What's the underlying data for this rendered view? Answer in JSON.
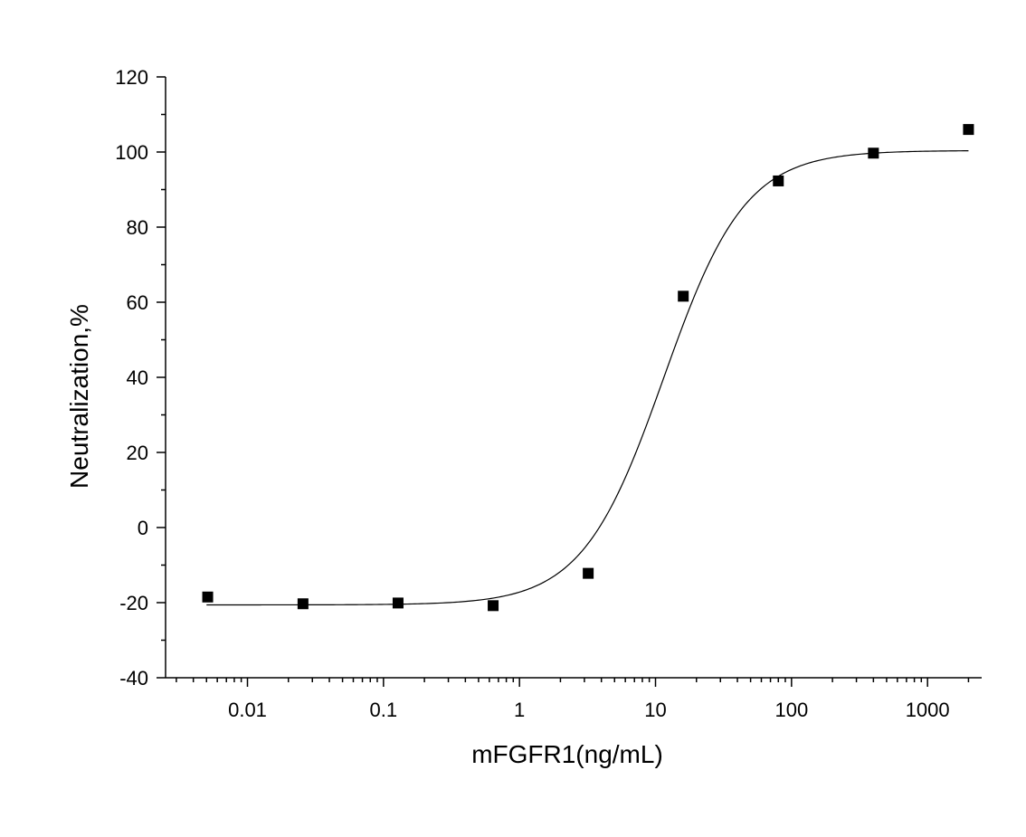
{
  "chart_data": {
    "type": "scatter",
    "title": "",
    "xlabel": "mFGFR1(ng/mL)",
    "ylabel": "Neutralization,%",
    "xscale": "log",
    "xlim": [
      0.0025,
      2500
    ],
    "ylim": [
      -40,
      120
    ],
    "x_ticks": [
      0.01,
      0.1,
      1,
      10,
      100,
      1000
    ],
    "x_tick_labels": [
      "0.01",
      "0.1",
      "1",
      "10",
      "100",
      "1000"
    ],
    "y_ticks": [
      -40,
      -20,
      0,
      20,
      40,
      60,
      80,
      100,
      120
    ],
    "y_tick_labels": [
      "-40",
      "-20",
      "0",
      "20",
      "40",
      "60",
      "80",
      "100",
      "120"
    ],
    "grid": false,
    "legend": "none",
    "marker": "square",
    "marker_color": "#000000",
    "line_color": "#000000",
    "series": [
      {
        "points": [
          {
            "x": 0.0051,
            "y": -18.5
          },
          {
            "x": 0.0256,
            "y": -20.3
          },
          {
            "x": 0.128,
            "y": -20.1
          },
          {
            "x": 0.64,
            "y": -20.8
          },
          {
            "x": 3.2,
            "y": -12.2
          },
          {
            "x": 16,
            "y": 61.6
          },
          {
            "x": 80,
            "y": 92.3
          },
          {
            "x": 400,
            "y": 99.7
          },
          {
            "x": 2000,
            "y": 106.0
          }
        ]
      }
    ],
    "fit_curve": {
      "model": "four-parameter logistic",
      "bottom": -20.6,
      "top": 100.4,
      "ec50": 11.5,
      "hill": 1.45,
      "x_range": [
        0.005,
        2000
      ]
    }
  }
}
